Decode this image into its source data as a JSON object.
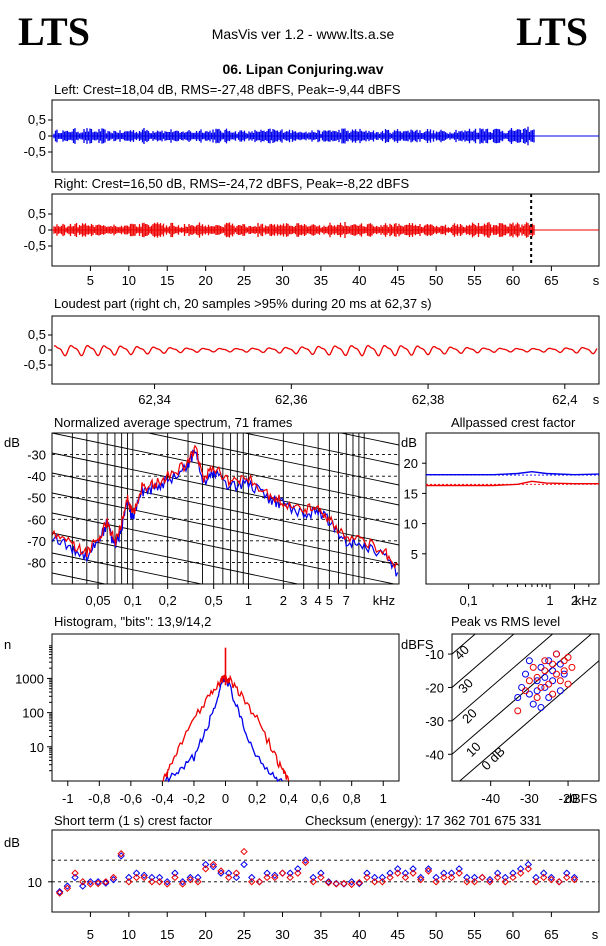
{
  "header": {
    "logo_left": "LTS",
    "logo_right": "LTS",
    "app": "MasVis ver 1.2 - www.lts.a.se",
    "file": "06. Lipan Conjuring.wav"
  },
  "colors": {
    "left": "#0000ee",
    "right": "#ee0000",
    "text": "#000000"
  },
  "chart_data": [
    {
      "type": "line",
      "title": "Left: Crest=18,04 dB, RMS=-27,48 dBFS, Peak=-9,44 dBFS",
      "series": [
        {
          "name": "Left",
          "color": "#0000ee",
          "peak": 0.34,
          "length_s": 71.2
        }
      ],
      "y_ticks": [
        "0,5",
        "0",
        "-0,5"
      ],
      "ylim": [
        -1,
        1
      ]
    },
    {
      "type": "line",
      "title": "Right: Crest=16,50 dB, RMS=-24,72 dBFS, Peak=-8,22 dBFS",
      "series": [
        {
          "name": "Right",
          "color": "#ee0000",
          "peak": 0.39,
          "length_s": 71.2
        }
      ],
      "y_ticks": [
        "0,5",
        "0",
        "-0,5"
      ],
      "x_ticks": [
        "5",
        "10",
        "15",
        "20",
        "25",
        "30",
        "35",
        "40",
        "45",
        "50",
        "55",
        "60",
        "65"
      ],
      "xlabel": "s",
      "xlim": [
        0,
        71.2
      ],
      "ylim": [
        -1,
        1
      ],
      "marker_s": 62.37
    },
    {
      "type": "line",
      "title": "Loudest part (right ch, 20 samples >95% during 20 ms at 62,37 s)",
      "series": [
        {
          "name": "Right",
          "color": "#ee0000",
          "amplitude": 0.1
        }
      ],
      "y_ticks": [
        "0,5",
        "0",
        "-0,5"
      ],
      "x_ticks": [
        "62,34",
        "62,36",
        "62,38",
        "62,4"
      ],
      "xlabel": "s",
      "xlim": [
        62.325,
        62.405
      ],
      "ylim": [
        -1,
        1
      ]
    },
    {
      "type": "line",
      "title": "Normalized average spectrum, 71 frames",
      "ylabel": "dB",
      "y_ticks": [
        "-30",
        "-40",
        "-50",
        "-60",
        "-70",
        "-80"
      ],
      "x_ticks": [
        "0,05",
        "0,1",
        "0,2",
        "0,5",
        "1",
        "2",
        "3",
        "4",
        "5",
        "7"
      ],
      "xlabel": "kHz",
      "xlim": [
        0.02,
        20
      ],
      "ylim": [
        -90,
        -20
      ],
      "series": [
        {
          "name": "Left",
          "color": "#0000ee",
          "points": [
            [
              0.02,
              -68
            ],
            [
              0.03,
              -74
            ],
            [
              0.04,
              -77
            ],
            [
              0.05,
              -70
            ],
            [
              0.06,
              -62
            ],
            [
              0.07,
              -73
            ],
            [
              0.08,
              -64
            ],
            [
              0.09,
              -52
            ],
            [
              0.1,
              -60
            ],
            [
              0.12,
              -47
            ],
            [
              0.15,
              -46
            ],
            [
              0.2,
              -42
            ],
            [
              0.3,
              -36
            ],
            [
              0.35,
              -27
            ],
            [
              0.4,
              -43
            ],
            [
              0.5,
              -38
            ],
            [
              0.7,
              -45
            ],
            [
              1,
              -43
            ],
            [
              1.5,
              -51
            ],
            [
              2,
              -53
            ],
            [
              3,
              -58
            ],
            [
              4,
              -56
            ],
            [
              5,
              -61
            ],
            [
              7,
              -70
            ],
            [
              10,
              -72
            ],
            [
              15,
              -77
            ],
            [
              20,
              -86
            ]
          ]
        },
        {
          "name": "Right",
          "color": "#ee0000",
          "points": [
            [
              0.02,
              -65
            ],
            [
              0.03,
              -72
            ],
            [
              0.04,
              -76
            ],
            [
              0.05,
              -69
            ],
            [
              0.06,
              -61
            ],
            [
              0.07,
              -71
            ],
            [
              0.08,
              -62
            ],
            [
              0.09,
              -50
            ],
            [
              0.1,
              -58
            ],
            [
              0.12,
              -45
            ],
            [
              0.15,
              -44
            ],
            [
              0.2,
              -40
            ],
            [
              0.3,
              -34
            ],
            [
              0.35,
              -26
            ],
            [
              0.4,
              -41
            ],
            [
              0.5,
              -36
            ],
            [
              0.7,
              -43
            ],
            [
              1,
              -41
            ],
            [
              1.5,
              -49
            ],
            [
              2,
              -52
            ],
            [
              3,
              -56
            ],
            [
              4,
              -54
            ],
            [
              5,
              -60
            ],
            [
              7,
              -69
            ],
            [
              10,
              -70
            ],
            [
              15,
              -75
            ],
            [
              20,
              -84
            ]
          ]
        }
      ]
    },
    {
      "type": "line",
      "title": "Allpassed crest factor",
      "ylabel": "dB",
      "y_ticks": [
        "20",
        "15",
        "10",
        "5"
      ],
      "x_ticks": [
        "0,1",
        "1",
        "2"
      ],
      "xlabel": "kHz",
      "xlim": [
        0.03,
        4
      ],
      "ylim": [
        0,
        25
      ],
      "series": [
        {
          "name": "Left",
          "color": "#0000ee",
          "points": [
            [
              0.03,
              18.1
            ],
            [
              0.2,
              18.1
            ],
            [
              0.4,
              18.3
            ],
            [
              0.6,
              18.6
            ],
            [
              0.9,
              18.3
            ],
            [
              2,
              18.1
            ],
            [
              4,
              18.2
            ]
          ]
        },
        {
          "name": "Right",
          "color": "#ee0000",
          "points": [
            [
              0.03,
              16.3
            ],
            [
              0.2,
              16.3
            ],
            [
              0.4,
              16.5
            ],
            [
              0.6,
              17.0
            ],
            [
              0.9,
              16.7
            ],
            [
              2,
              16.6
            ],
            [
              4,
              16.6
            ]
          ]
        }
      ],
      "reference_lines": [
        {
          "series": "Left",
          "y": 18.04
        },
        {
          "series": "Right",
          "y": 16.5
        }
      ]
    },
    {
      "type": "line",
      "title": "Histogram, \"bits\": 13,9/14,2",
      "ylabel": "n",
      "y_ticks": [
        "1000",
        "100",
        "10"
      ],
      "x_ticks": [
        "-1",
        "-0,8",
        "-0,6",
        "-0,4",
        "-0,2",
        "0",
        "0,2",
        "0,4",
        "0,6",
        "0,8",
        "1"
      ],
      "xlim": [
        -1.1,
        1.1
      ],
      "ylim_log10": [
        0,
        4.3
      ],
      "series": [
        {
          "name": "Left",
          "color": "#0000ee",
          "points": [
            [
              -0.38,
              0
            ],
            [
              -0.3,
              0.2
            ],
            [
              -0.2,
              0.7
            ],
            [
              -0.12,
              1.5
            ],
            [
              -0.06,
              2.3
            ],
            [
              -0.02,
              2.85
            ],
            [
              0,
              3.0
            ],
            [
              0.02,
              2.85
            ],
            [
              0.06,
              2.3
            ],
            [
              0.12,
              1.5
            ],
            [
              0.2,
              0.7
            ],
            [
              0.3,
              0.2
            ],
            [
              0.36,
              0
            ]
          ]
        },
        {
          "name": "Right",
          "color": "#ee0000",
          "points": [
            [
              -0.4,
              0
            ],
            [
              -0.36,
              0.3
            ],
            [
              -0.3,
              0.9
            ],
            [
              -0.2,
              1.8
            ],
            [
              -0.1,
              2.5
            ],
            [
              -0.03,
              2.95
            ],
            [
              0,
              3.0
            ],
            [
              0.03,
              2.95
            ],
            [
              0.1,
              2.5
            ],
            [
              0.2,
              1.8
            ],
            [
              0.3,
              0.9
            ],
            [
              0.36,
              0.3
            ],
            [
              0.4,
              0
            ]
          ]
        }
      ],
      "center_spike_log10": 3.9
    },
    {
      "type": "scatter",
      "title": "Peak vs RMS level",
      "ylabel": "dBFS",
      "xlabel": "dBFS",
      "y_ticks": [
        "-10",
        "-20",
        "-30",
        "-40"
      ],
      "x_ticks": [
        "-40",
        "-30",
        "-20"
      ],
      "xlim": [
        -50,
        -12
      ],
      "ylim": [
        -48,
        -4
      ],
      "diagonal_labels": [
        "40",
        "30",
        "20",
        "10",
        "0 dB"
      ],
      "series": [
        {
          "name": "Left",
          "color": "#0000ee",
          "points": [
            [
              -33,
              -23
            ],
            [
              -32,
              -20
            ],
            [
              -31,
              -16
            ],
            [
              -30,
              -22
            ],
            [
              -30,
              -12
            ],
            [
              -29,
              -25
            ],
            [
              -28,
              -18
            ],
            [
              -28,
              -21
            ],
            [
              -27,
              -14
            ],
            [
              -27,
              -26
            ],
            [
              -26,
              -17
            ],
            [
              -26,
              -20
            ],
            [
              -25,
              -23
            ],
            [
              -25,
              -12
            ],
            [
              -24,
              -18
            ],
            [
              -24,
              -15
            ],
            [
              -23,
              -10
            ],
            [
              -22,
              -13
            ],
            [
              -22,
              -21
            ],
            [
              -21,
              -16
            ]
          ]
        },
        {
          "name": "Right",
          "color": "#ee0000",
          "points": [
            [
              -33,
              -27
            ],
            [
              -31,
              -21
            ],
            [
              -30,
              -18
            ],
            [
              -29,
              -14
            ],
            [
              -28,
              -23
            ],
            [
              -28,
              -17
            ],
            [
              -27,
              -20
            ],
            [
              -26,
              -15
            ],
            [
              -26,
              -12
            ],
            [
              -25,
              -19
            ],
            [
              -24,
              -13
            ],
            [
              -24,
              -22
            ],
            [
              -23,
              -16
            ],
            [
              -23,
              -10
            ],
            [
              -22,
              -18
            ],
            [
              -21,
              -12
            ],
            [
              -21,
              -15
            ],
            [
              -20,
              -11
            ],
            [
              -20,
              -19
            ],
            [
              -19,
              -14
            ]
          ]
        }
      ]
    },
    {
      "type": "scatter",
      "title": "Short term (1 s) crest factor",
      "annotation": "Checksum (energy):  17 362 701 675 331",
      "ylabel": "dB",
      "y_ticks": [
        "10"
      ],
      "x_ticks": [
        "5",
        "10",
        "15",
        "20",
        "25",
        "30",
        "35",
        "40",
        "45",
        "50",
        "55",
        "60",
        "65"
      ],
      "xlabel": "s",
      "xlim": [
        0,
        71.2
      ],
      "ylim": [
        3,
        22
      ],
      "series": [
        {
          "name": "Left",
          "color": "#0000ee",
          "values": [
            7.7,
            9,
            11,
            9,
            10,
            10,
            9.7,
            10.5,
            16,
            11,
            12,
            11.5,
            11,
            11,
            10,
            12,
            10,
            11,
            11,
            14,
            13.5,
            12,
            12,
            11,
            14,
            11,
            10,
            12,
            11.5,
            12,
            12,
            13,
            15,
            11,
            12,
            10,
            9.6,
            9.5,
            10,
            9.6,
            12,
            11,
            11,
            12,
            13,
            12,
            13,
            11,
            13,
            11,
            12,
            12,
            13,
            11,
            11,
            11,
            10.5,
            12,
            11,
            12,
            13,
            14,
            11,
            12,
            11,
            10,
            12,
            11
          ]
        },
        {
          "name": "Right",
          "color": "#ee0000",
          "values": [
            7.4,
            8.5,
            12,
            10,
            9.5,
            9.6,
            10,
            11,
            16.5,
            10,
            11,
            11,
            10,
            10,
            9.5,
            11,
            9.5,
            10.5,
            10,
            13,
            14,
            12.5,
            11,
            12,
            17,
            10,
            10,
            11,
            11,
            12,
            11,
            12,
            14.5,
            10,
            11,
            9.8,
            9.5,
            9.6,
            9.4,
            9.8,
            11,
            10,
            10,
            11,
            12,
            11,
            12,
            10.5,
            12.5,
            10,
            11,
            11,
            12,
            10,
            10,
            11,
            10,
            11,
            10,
            11,
            12,
            13,
            10,
            11,
            10.5,
            10,
            11,
            10.5
          ]
        }
      ],
      "reference_lines": [
        {
          "y": 10
        },
        {
          "y": 15
        }
      ]
    }
  ]
}
